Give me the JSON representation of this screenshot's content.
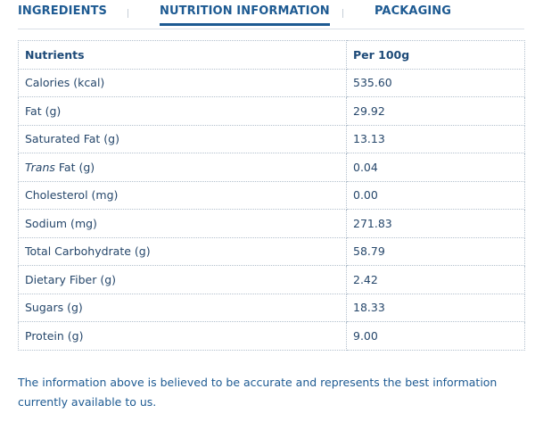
{
  "tabs": [
    {
      "label": "INGREDIENTS"
    },
    {
      "label": "NUTRITION INFORMATION"
    },
    {
      "label": "PACKAGING"
    }
  ],
  "table": {
    "headers": [
      "Nutrients",
      "Per 100g"
    ],
    "rows": [
      {
        "nutrient": "Calories (kcal)",
        "value": "535.60"
      },
      {
        "nutrient": "Fat (g)",
        "value": "29.92"
      },
      {
        "nutrient": "Saturated Fat (g)",
        "value": "13.13"
      },
      {
        "nutrient_prefix": "Trans",
        "nutrient": " Fat (g)",
        "value": "0.04"
      },
      {
        "nutrient": "Cholesterol (mg)",
        "value": "0.00"
      },
      {
        "nutrient": "Sodium (mg)",
        "value": "271.83"
      },
      {
        "nutrient": "Total Carbohydrate (g)",
        "value": "58.79"
      },
      {
        "nutrient": "Dietary Fiber (g)",
        "value": "2.42"
      },
      {
        "nutrient": "Sugars (g)",
        "value": "18.33"
      },
      {
        "nutrient": "Protein (g)",
        "value": "9.00"
      }
    ]
  },
  "disclaimer": "The information above is believed to be accurate and represents the best information currently available to us.",
  "colors": {
    "accent": "#1d5a92",
    "text": "#26476b",
    "border": "#b3c0cd"
  }
}
